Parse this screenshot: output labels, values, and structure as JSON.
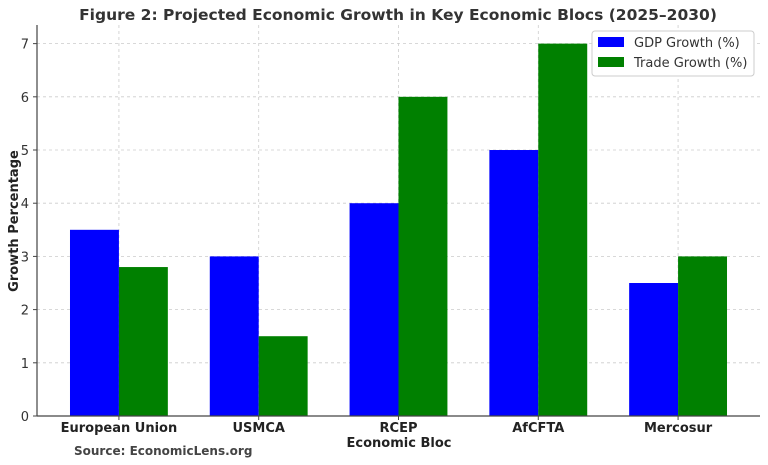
{
  "chart_data": {
    "type": "bar",
    "title": "Figure 2: Projected Economic Growth in Key Economic Blocs (2025–2030)",
    "xlabel": "Economic Bloc",
    "ylabel": "Growth Percentage",
    "source": "Source: EconomicLens.org",
    "categories": [
      "European Union",
      "USMCA",
      "RCEP",
      "AfCFTA",
      "Mercosur"
    ],
    "series": [
      {
        "name": "GDP Growth (%)",
        "color": "#0000ff",
        "values": [
          3.5,
          3.0,
          4.0,
          5.0,
          2.5
        ]
      },
      {
        "name": "Trade Growth (%)",
        "color": "#008000",
        "values": [
          2.8,
          1.5,
          6.0,
          7.0,
          3.0
        ]
      }
    ],
    "ylim": [
      0,
      7.35
    ],
    "yticks": [
      0,
      1,
      2,
      3,
      4,
      5,
      6,
      7
    ],
    "grid": true,
    "legend": "top-right"
  }
}
